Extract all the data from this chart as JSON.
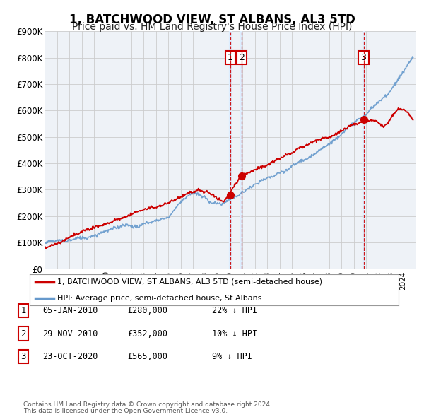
{
  "title": "1, BATCHWOOD VIEW, ST ALBANS, AL3 5TD",
  "subtitle": "Price paid vs. HM Land Registry's House Price Index (HPI)",
  "ylim": [
    0,
    900000
  ],
  "yticks": [
    0,
    100000,
    200000,
    300000,
    400000,
    500000,
    600000,
    700000,
    800000,
    900000
  ],
  "ytick_labels": [
    "£0",
    "£100K",
    "£200K",
    "£300K",
    "£400K",
    "£500K",
    "£600K",
    "£700K",
    "£800K",
    "£900K"
  ],
  "red_color": "#cc0000",
  "blue_color": "#6699cc",
  "blue_fill_color": "#ddeeff",
  "grid_color": "#cccccc",
  "bg_color": "#eef2f7",
  "legend_label_red": "1, BATCHWOOD VIEW, ST ALBANS, AL3 5TD (semi-detached house)",
  "legend_label_blue": "HPI: Average price, semi-detached house, St Albans",
  "trans_years": [
    2010.03,
    2010.92,
    2020.8
  ],
  "trans_prices": [
    280000,
    352000,
    565000
  ],
  "trans_nums": [
    1,
    2,
    3
  ],
  "transactions": [
    {
      "num": 1,
      "date": "05-JAN-2010",
      "price": "£280,000",
      "pct": "22% ↓ HPI"
    },
    {
      "num": 2,
      "date": "29-NOV-2010",
      "price": "£352,000",
      "pct": "10% ↓ HPI"
    },
    {
      "num": 3,
      "date": "23-OCT-2020",
      "price": "£565,000",
      "pct": "9% ↓ HPI"
    }
  ],
  "footnote1": "Contains HM Land Registry data © Crown copyright and database right 2024.",
  "footnote2": "This data is licensed under the Open Government Licence v3.0.",
  "title_fontsize": 12,
  "subtitle_fontsize": 10,
  "xlim_start": 1995,
  "xlim_end": 2025
}
